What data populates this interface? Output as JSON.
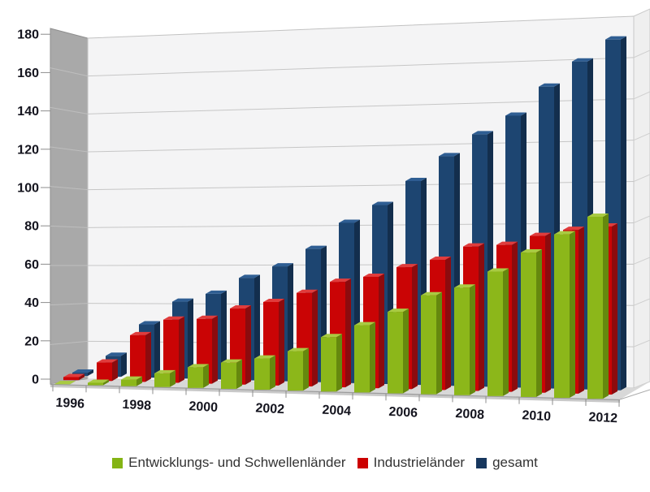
{
  "chart_data": {
    "type": "bar",
    "variant": "3d-column",
    "title": "",
    "categories": [
      1996,
      1997,
      1998,
      1999,
      2000,
      2001,
      2002,
      2003,
      2004,
      2005,
      2006,
      2007,
      2008,
      2009,
      2010,
      2011,
      2012
    ],
    "x_axis_labels_shown": [
      "1996",
      "1998",
      "2000",
      "2002",
      "2004",
      "2006",
      "2008",
      "2010",
      "2012"
    ],
    "series": [
      {
        "name": "Entwicklungs- und Schwellenländer",
        "color": "#84B414",
        "faces": {
          "front": "#8CB71A",
          "side": "#65880E",
          "top": "#A9CB42"
        },
        "values": [
          0.1,
          1.3,
          3.4,
          7.1,
          10.7,
          13.5,
          16.0,
          20.1,
          27.6,
          33.9,
          40.9,
          49.4,
          53.4,
          61.5,
          71.0,
          80.0,
          88.6
        ]
      },
      {
        "name": "Industrieländer",
        "color": "#CC0000",
        "faces": {
          "front": "#CA0405",
          "side": "#8C0B0E",
          "top": "#E03C3C"
        },
        "values": [
          1.6,
          9.7,
          24.4,
          32.8,
          33.5,
          39.1,
          42.7,
          47.6,
          53.4,
          56.1,
          61.1,
          64.9,
          71.6,
          72.5,
          77.0,
          80.0,
          81.7
        ]
      },
      {
        "name": "gesamt",
        "color": "#17375E",
        "faces": {
          "front": "#1D4571",
          "side": "#132E4D",
          "top": "#2F5E93"
        },
        "values": [
          1.7,
          11.0,
          27.8,
          39.9,
          44.2,
          52.6,
          58.7,
          67.7,
          81.0,
          90.0,
          102.0,
          114.3,
          125.0,
          134.0,
          148.0,
          160.0,
          170.3
        ]
      }
    ],
    "ylim": [
      0,
      180
    ],
    "y_ticks": [
      0,
      20,
      40,
      60,
      80,
      100,
      120,
      140,
      160,
      180
    ],
    "grid": true,
    "legend_position": "bottom"
  },
  "colors": {
    "wall_left": "#A9A9A9",
    "wall_back": "#F4F4F5",
    "wall_right": "#EFEFEF",
    "floor": "#D8D8D8",
    "floor_front": "#C9C9C9",
    "grid_back": "#C6C6C6",
    "grid_left_wall": "#BEBEBE",
    "grid_right_wall": "#CFCFCF",
    "tick": "#8C8C8C",
    "axis_edge": "#9C9C9C",
    "axis_text": "#14141E",
    "legend_text": "#333333"
  }
}
